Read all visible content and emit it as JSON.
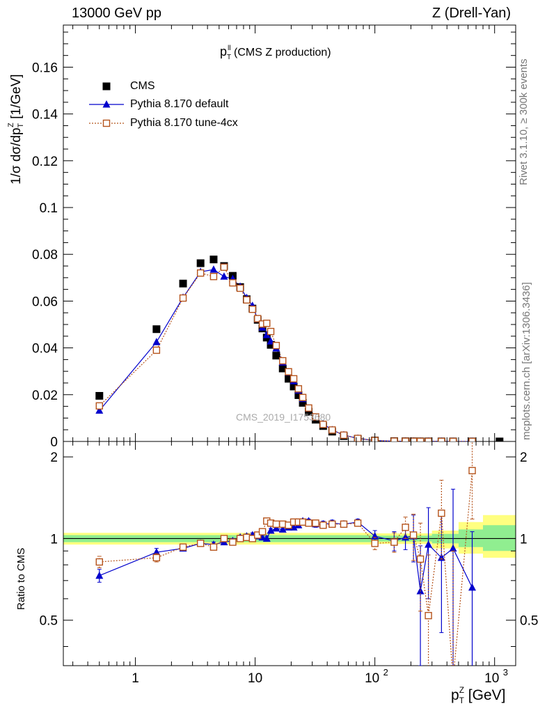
{
  "header": {
    "left": "13000 GeV pp",
    "right": "Z (Drell-Yan)"
  },
  "side_labels": {
    "rivet": "Rivet 3.1.10, ≥ 300k events",
    "mcplots": "mcplots.cern.ch [arXiv:1306.3436]"
  },
  "main_ylabel": "1/σ dσ/dp",
  "main_ylabel_sup": "Z",
  "main_ylabel_sub": "T",
  "main_ylabel_unit": "[1/GeV]",
  "ratio_ylabel": "Ratio to CMS",
  "xlabel": "p",
  "xlabel_sup": "Z",
  "xlabel_sub": "T",
  "xlabel_unit": "[GeV]",
  "plot_title_main": "p",
  "plot_title_sup": "ll",
  "plot_title_sub": "T",
  "plot_title_rest": "(CMS Z production)",
  "watermark": "CMS_2019_I1753680",
  "legend": [
    {
      "label": "CMS",
      "marker": "filled-square",
      "color": "#000000"
    },
    {
      "label": "Pythia 8.170 default",
      "marker": "filled-triangle",
      "color": "#0000cc"
    },
    {
      "label": "Pythia 8.170 tune-4cx",
      "marker": "open-square",
      "color": "#b5531b"
    }
  ],
  "chart_data": {
    "type": "line",
    "x_scale": "log",
    "xlim": [
      0.25,
      1500
    ],
    "x_ticks": [
      {
        "value": 1,
        "label": "1"
      },
      {
        "value": 10,
        "label": "10"
      },
      {
        "value": 100,
        "label": "10",
        "sup": "2"
      },
      {
        "value": 1000,
        "label": "10",
        "sup": "3"
      }
    ],
    "main": {
      "ylim": [
        0,
        0.178
      ],
      "y_ticks": [
        {
          "value": 0,
          "label": "0"
        },
        {
          "value": 0.02,
          "label": "0.02"
        },
        {
          "value": 0.04,
          "label": "0.04"
        },
        {
          "value": 0.06,
          "label": "0.06"
        },
        {
          "value": 0.08,
          "label": "0.08"
        },
        {
          "value": 0.1,
          "label": "0.1"
        },
        {
          "value": 0.12,
          "label": "0.12"
        },
        {
          "value": 0.14,
          "label": "0.14"
        },
        {
          "value": 0.16,
          "label": "0.16"
        }
      ]
    },
    "ratio": {
      "ylim": [
        0.34,
        2.28
      ],
      "y_scale": "log",
      "y_ticks": [
        {
          "value": 0.5,
          "label": "0.5"
        },
        {
          "value": 1,
          "label": "1"
        },
        {
          "value": 2,
          "label": "2"
        }
      ],
      "band_inner": [
        [
          0.25,
          0.97,
          1.03
        ],
        [
          1.0,
          0.97,
          1.03
        ],
        [
          100,
          0.975,
          1.025
        ],
        [
          300,
          0.96,
          1.04
        ],
        [
          500,
          0.93,
          1.08
        ],
        [
          800,
          0.9,
          1.12
        ],
        [
          1500,
          0.9,
          1.12
        ]
      ],
      "band_outer": [
        [
          0.25,
          0.95,
          1.05
        ],
        [
          1.0,
          0.95,
          1.05
        ],
        [
          100,
          0.955,
          1.045
        ],
        [
          300,
          0.92,
          1.07
        ],
        [
          500,
          0.88,
          1.15
        ],
        [
          800,
          0.85,
          1.22
        ],
        [
          1500,
          0.85,
          1.22
        ]
      ]
    },
    "series": [
      {
        "name": "CMS",
        "x": [
          0.5,
          1.5,
          2.5,
          3.5,
          4.5,
          5.5,
          6.5,
          7.5,
          8.5,
          9.5,
          10.5,
          11.5,
          12.5,
          13.5,
          15,
          17,
          19,
          21,
          23,
          25,
          28,
          32,
          37,
          44,
          55,
          72,
          100,
          145,
          180,
          210,
          240,
          280,
          360,
          450,
          650,
          1100
        ],
        "y": [
          0.0195,
          0.048,
          0.0675,
          0.0762,
          0.0778,
          0.075,
          0.0708,
          0.066,
          0.0608,
          0.0568,
          0.052,
          0.0483,
          0.0444,
          0.0413,
          0.0367,
          0.0312,
          0.0268,
          0.0235,
          0.0198,
          0.0165,
          0.0127,
          0.0093,
          0.0066,
          0.0042,
          0.0023,
          0.0011,
          0.0004,
          0.00012,
          8e-05,
          6e-05,
          4e-05,
          3e-05,
          2e-05,
          1e-05,
          5e-06,
          8e-07
        ]
      },
      {
        "name": "Pythia 8.170 default",
        "x": [
          0.5,
          1.5,
          2.5,
          3.5,
          4.5,
          5.5,
          6.5,
          7.5,
          8.5,
          9.5,
          10.5,
          11.5,
          12.5,
          13.5,
          15,
          17,
          19,
          21,
          23,
          25,
          28,
          32,
          37,
          44,
          55,
          72,
          100,
          145,
          180,
          210,
          240,
          280,
          360,
          450,
          650
        ],
        "y": [
          0.0132,
          0.0425,
          0.0615,
          0.0725,
          0.0735,
          0.0705,
          0.0695,
          0.0662,
          0.0614,
          0.058,
          0.0523,
          0.0487,
          0.0455,
          0.0428,
          0.0398,
          0.0338,
          0.0295,
          0.0258,
          0.0218,
          0.0182,
          0.0141,
          0.0103,
          0.0075,
          0.0049,
          0.0027,
          0.0013,
          0.0004,
          0.00012,
          8e-05,
          6e-05,
          3e-05,
          3e-05,
          2e-05,
          1e-05,
          3e-06
        ]
      },
      {
        "name": "Pythia 8.170 tune-4cx",
        "x": [
          0.5,
          1.5,
          2.5,
          3.5,
          4.5,
          5.5,
          6.5,
          7.5,
          8.5,
          9.5,
          10.5,
          11.5,
          12.5,
          13.5,
          15,
          17,
          19,
          21,
          23,
          25,
          28,
          32,
          37,
          44,
          55,
          72,
          100,
          145,
          180,
          210,
          240,
          280,
          360,
          450,
          650
        ],
        "y": [
          0.0152,
          0.039,
          0.0613,
          0.072,
          0.0705,
          0.0745,
          0.0678,
          0.0655,
          0.0605,
          0.0565,
          0.0525,
          0.0502,
          0.0505,
          0.047,
          0.041,
          0.0345,
          0.0298,
          0.0268,
          0.0225,
          0.0188,
          0.0143,
          0.0105,
          0.0073,
          0.0049,
          0.0027,
          0.0013,
          0.0004,
          0.00012,
          8e-05,
          6e-05,
          4e-05,
          3e-05,
          2e-05,
          1e-05,
          5e-06
        ]
      }
    ],
    "ratio_series": [
      {
        "name": "Pythia 8.170 default",
        "x": [
          0.5,
          1.5,
          2.5,
          3.5,
          4.5,
          5.5,
          6.5,
          7.5,
          8.5,
          9.5,
          10.5,
          11.5,
          12.5,
          13.5,
          15,
          17,
          19,
          21,
          23,
          25,
          28,
          32,
          37,
          44,
          55,
          72,
          100,
          145,
          180,
          210,
          240,
          280,
          360,
          450,
          650
        ],
        "y": [
          0.73,
          0.89,
          0.92,
          0.96,
          0.95,
          0.97,
          0.98,
          1.01,
          1.02,
          1.03,
          1.02,
          1.01,
          1.0,
          1.07,
          1.09,
          1.08,
          1.1,
          1.1,
          1.12,
          1.16,
          1.16,
          1.13,
          1.13,
          1.14,
          1.13,
          1.15,
          1.02,
          0.98,
          1.01,
          1.02,
          0.64,
          0.95,
          0.85,
          0.92,
          0.66
        ],
        "err": [
          0.04,
          0.03,
          0.02,
          0.02,
          0.02,
          0.02,
          0.02,
          0.02,
          0.02,
          0.02,
          0.02,
          0.02,
          0.02,
          0.02,
          0.02,
          0.02,
          0.02,
          0.02,
          0.02,
          0.02,
          0.02,
          0.03,
          0.03,
          0.03,
          0.03,
          0.03,
          0.05,
          0.08,
          0.1,
          0.2,
          0.3,
          0.35,
          0.4,
          0.6,
          0.4
        ]
      },
      {
        "name": "Pythia 8.170 tune-4cx",
        "x": [
          0.5,
          1.5,
          2.5,
          3.5,
          4.5,
          5.5,
          6.5,
          7.5,
          8.5,
          9.5,
          10.5,
          11.5,
          12.5,
          13.5,
          15,
          17,
          19,
          21,
          23,
          25,
          28,
          32,
          37,
          44,
          55,
          72,
          100,
          145,
          180,
          210,
          240,
          280,
          360,
          450,
          650
        ],
        "y": [
          0.82,
          0.85,
          0.93,
          0.96,
          0.93,
          1.0,
          0.97,
          1.0,
          1.01,
          1.0,
          1.03,
          1.06,
          1.16,
          1.14,
          1.13,
          1.13,
          1.12,
          1.15,
          1.15,
          1.15,
          1.14,
          1.14,
          1.12,
          1.13,
          1.13,
          1.14,
          0.96,
          0.97,
          1.1,
          1.03,
          0.84,
          0.52,
          1.24,
          0.3,
          1.78
        ],
        "err": [
          0.04,
          0.03,
          0.02,
          0.02,
          0.02,
          0.02,
          0.02,
          0.02,
          0.02,
          0.02,
          0.02,
          0.02,
          0.02,
          0.02,
          0.02,
          0.02,
          0.02,
          0.02,
          0.02,
          0.02,
          0.02,
          0.03,
          0.03,
          0.03,
          0.03,
          0.03,
          0.05,
          0.08,
          0.1,
          0.2,
          0.3,
          0.35,
          0.4,
          0.6,
          0.6
        ]
      }
    ]
  }
}
